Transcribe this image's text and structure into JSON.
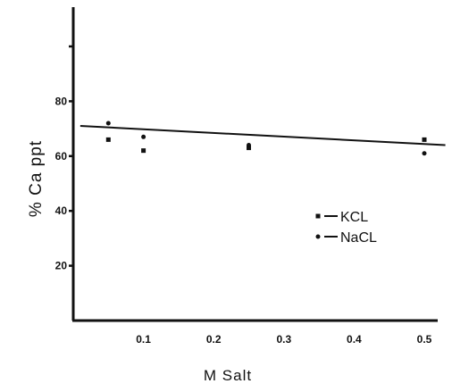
{
  "chart_data": {
    "type": "scatter",
    "xlabel": "M Salt",
    "ylabel": "% Ca ppt",
    "xlim": [
      0,
      0.53
    ],
    "ylim": [
      0,
      117
    ],
    "x_ticks": [
      {
        "value": 0.1,
        "label": "0.1"
      },
      {
        "value": 0.2,
        "label": "0.2"
      },
      {
        "value": 0.3,
        "label": "0.3"
      },
      {
        "value": 0.4,
        "label": "0.4"
      },
      {
        "value": 0.5,
        "label": "0.5"
      }
    ],
    "y_ticks": [
      {
        "value": 20,
        "label": "20"
      },
      {
        "value": 40,
        "label": "40"
      },
      {
        "value": 60,
        "label": "60"
      },
      {
        "value": 80,
        "label": "80"
      },
      {
        "value": 100,
        "label": ""
      }
    ],
    "series": [
      {
        "name": "KCL",
        "marker": "square",
        "color": "#111111",
        "x": [
          0.05,
          0.1,
          0.25,
          0.5
        ],
        "y": [
          66,
          62,
          63,
          66
        ]
      },
      {
        "name": "NaCL",
        "marker": "dot",
        "color": "#111111",
        "x": [
          0.05,
          0.1,
          0.25,
          0.5
        ],
        "y": [
          72,
          67,
          64,
          61
        ]
      }
    ],
    "trendline": {
      "x": [
        0.01,
        0.53
      ],
      "y": [
        71,
        64
      ]
    },
    "legend": {
      "position": "right-middle"
    },
    "grid": false
  }
}
